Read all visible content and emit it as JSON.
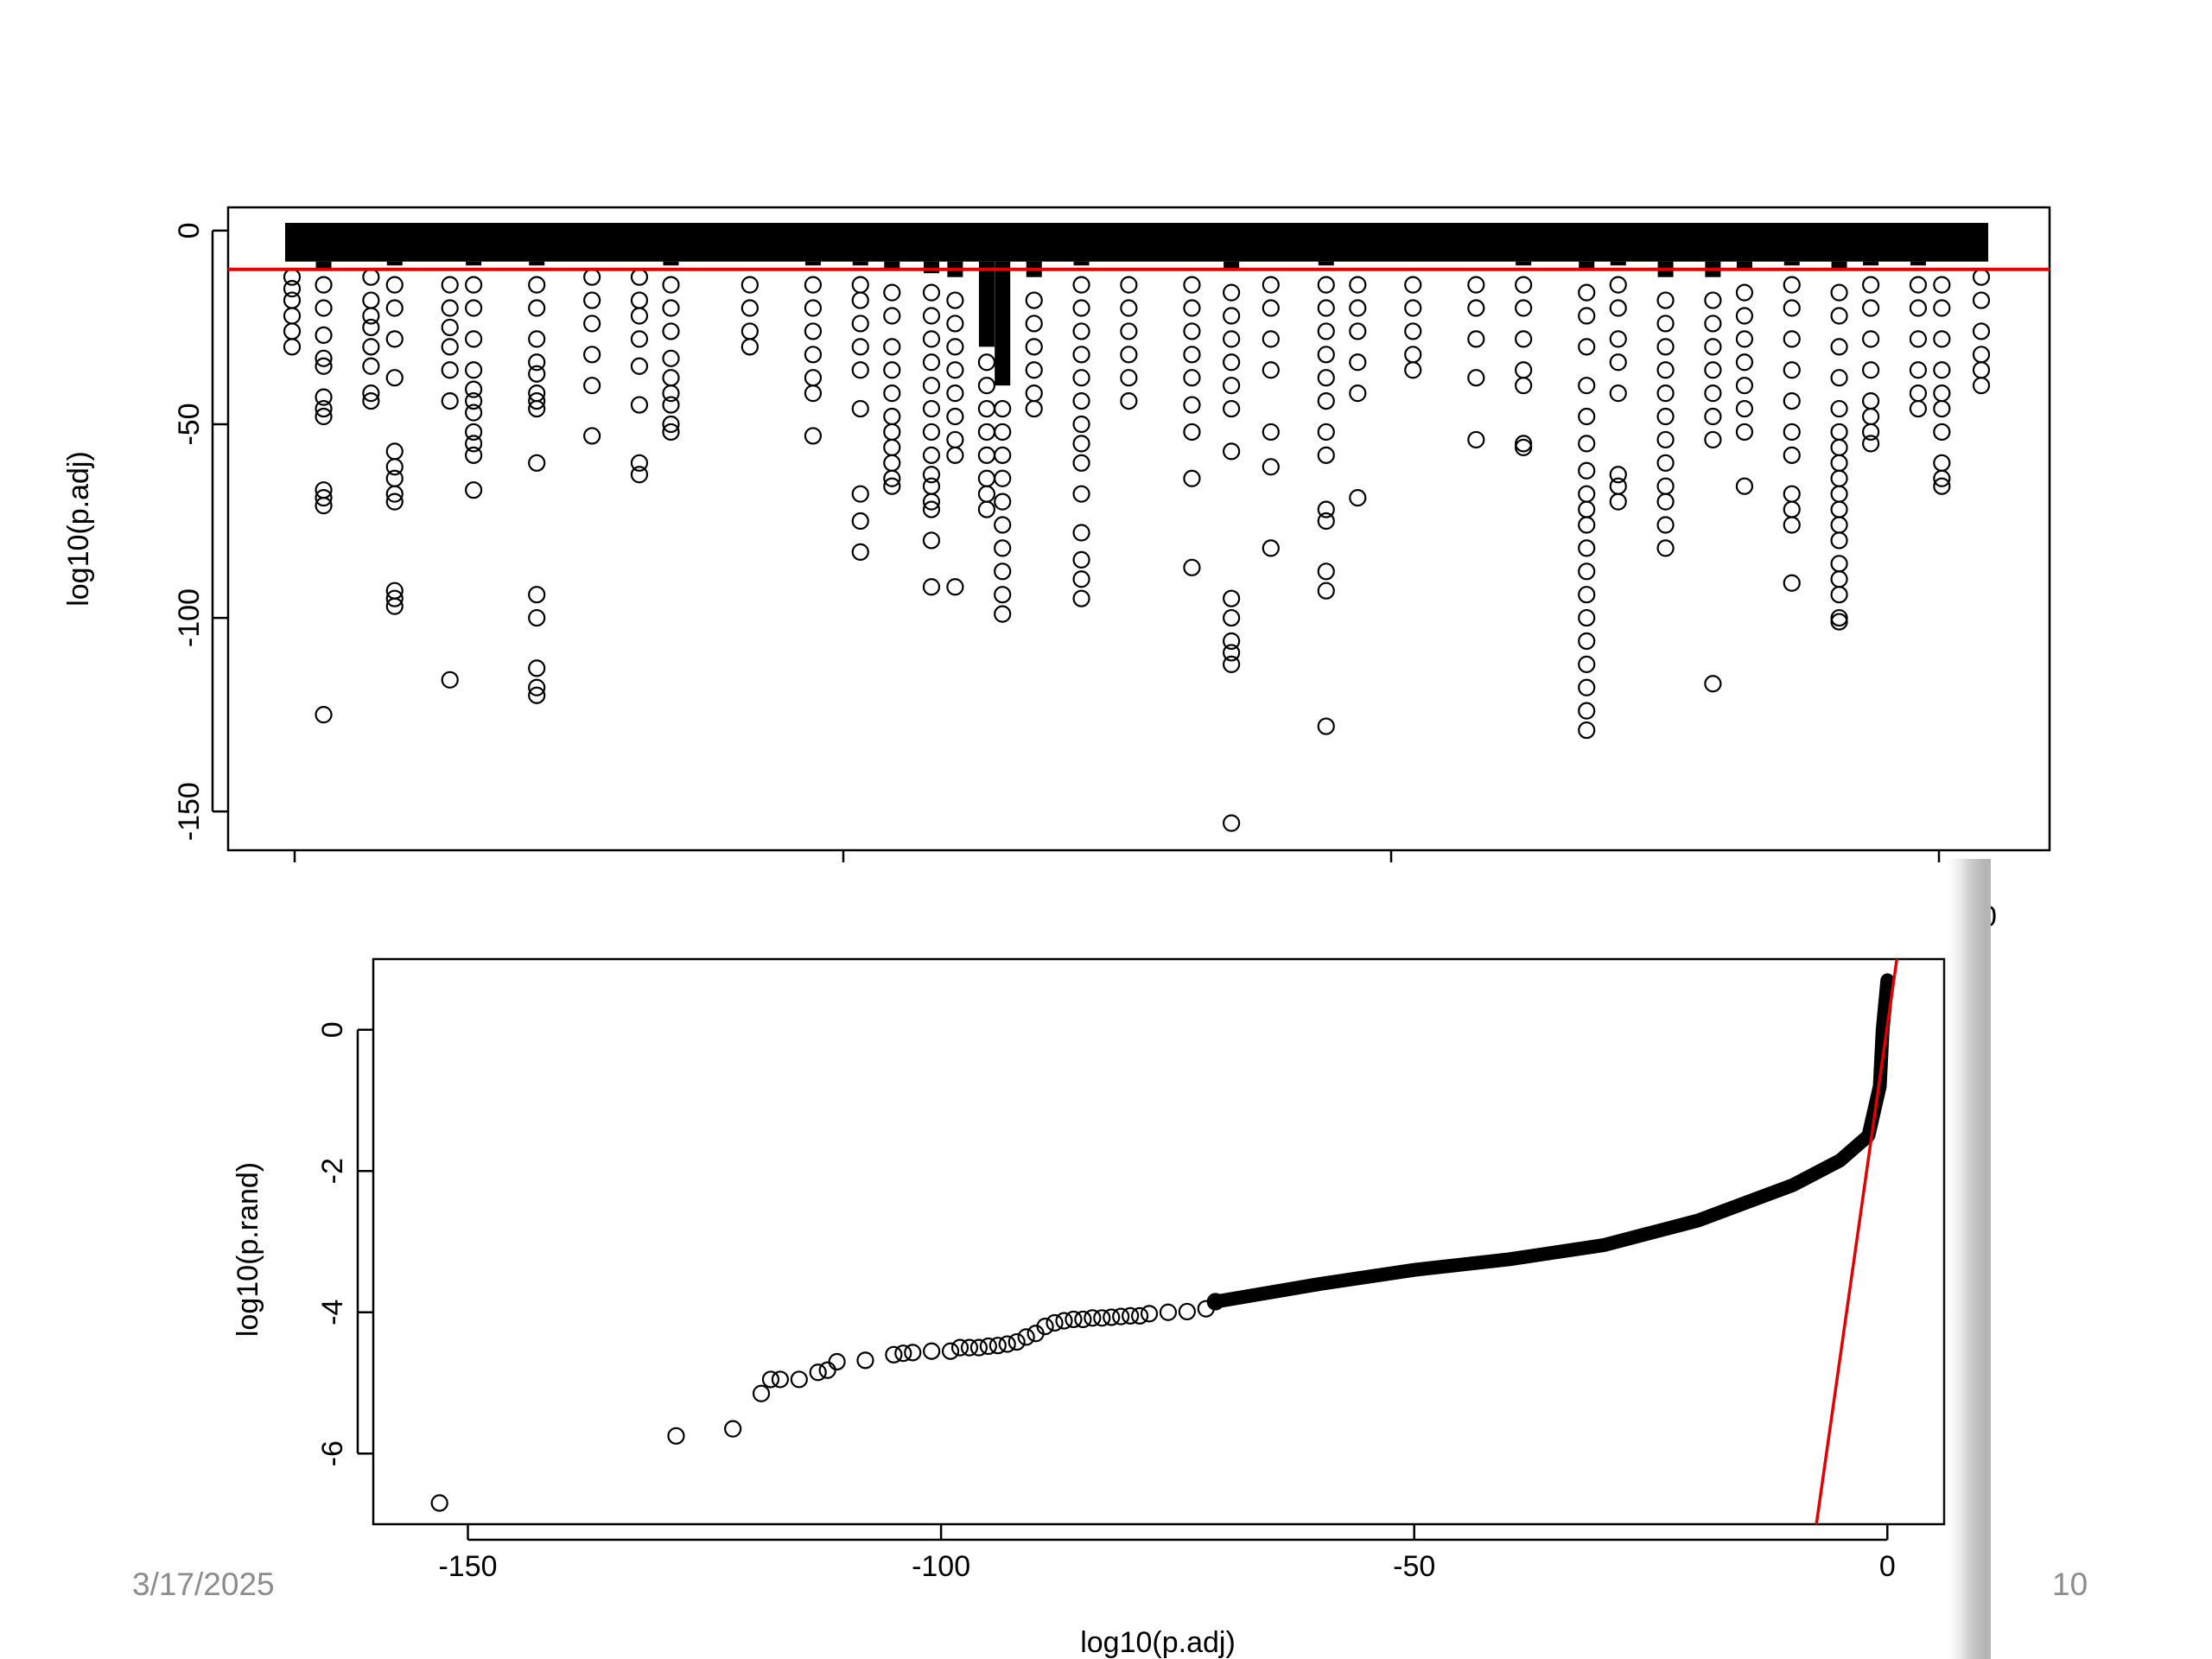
{
  "footer": {
    "date": "3/17/2025",
    "page_number": "10"
  },
  "chart_data": [
    {
      "type": "scatter",
      "ylabel": "log10(p.adj)",
      "xlabel": "",
      "yticks": [
        0,
        -50,
        -100,
        -150
      ],
      "ylim": [
        -160,
        6
      ],
      "marker": "open-circle",
      "hline": {
        "y": -10,
        "color": "#e00000"
      },
      "band_color": "#000000",
      "columns": [
        {
          "x": 0.0,
          "dense_min": -8,
          "tail": [
            -12,
            -15,
            -18,
            -22,
            -26,
            -30
          ]
        },
        {
          "x": 0.02,
          "dense_min": -10,
          "tail": [
            -14,
            -20,
            -27,
            -33,
            -35,
            -43,
            -46,
            -48,
            -67,
            -69,
            -71,
            -125
          ]
        },
        {
          "x": 0.05,
          "dense_min": -8,
          "tail": [
            -12,
            -18,
            -22,
            -25,
            -30,
            -35,
            -42,
            -44
          ]
        },
        {
          "x": 0.065,
          "dense_min": -9,
          "tail": [
            -14,
            -20,
            -28,
            -38,
            -57,
            -61,
            -64,
            -68,
            -93,
            -95,
            -97,
            -70
          ]
        },
        {
          "x": 0.1,
          "dense_min": -8,
          "tail": [
            -14,
            -20,
            -25,
            -30,
            -36,
            -44,
            -116
          ]
        },
        {
          "x": 0.115,
          "dense_min": -9,
          "tail": [
            -14,
            -20,
            -28,
            -36,
            -41,
            -44,
            -47,
            -52,
            -55,
            -58,
            -67
          ]
        },
        {
          "x": 0.155,
          "dense_min": -9,
          "tail": [
            -14,
            -20,
            -28,
            -34,
            -37,
            -42,
            -44,
            -46,
            -60,
            -94,
            -100,
            -113,
            -118,
            -120
          ]
        },
        {
          "x": 0.19,
          "dense_min": -8,
          "tail": [
            -12,
            -18,
            -24,
            -32,
            -40,
            -53
          ]
        },
        {
          "x": 0.22,
          "dense_min": -8,
          "tail": [
            -12,
            -18,
            -22,
            -28,
            -35,
            -45,
            -60,
            -63
          ]
        },
        {
          "x": 0.24,
          "dense_min": -9,
          "tail": [
            -14,
            -20,
            -26,
            -33,
            -38,
            -42,
            -45,
            -50,
            -52
          ]
        },
        {
          "x": 0.29,
          "dense_min": -8,
          "tail": [
            -14,
            -20,
            -26,
            -30
          ]
        },
        {
          "x": 0.33,
          "dense_min": -9,
          "tail": [
            -14,
            -20,
            -26,
            -32,
            -38,
            -42,
            -53
          ]
        },
        {
          "x": 0.36,
          "dense_min": -9,
          "tail": [
            -14,
            -18,
            -24,
            -30,
            -36,
            -46,
            -68,
            -75,
            -83
          ]
        },
        {
          "x": 0.38,
          "dense_min": -10,
          "tail": [
            -16,
            -22,
            -30,
            -36,
            -42,
            -48,
            -52,
            -56,
            -60,
            -64,
            -66
          ]
        },
        {
          "x": 0.405,
          "dense_min": -11,
          "tail": [
            -16,
            -22,
            -28,
            -34,
            -40,
            -46,
            -52,
            -58,
            -63,
            -66,
            -70,
            -72,
            -80,
            -92
          ]
        },
        {
          "x": 0.42,
          "dense_min": -12,
          "tail": [
            -18,
            -24,
            -30,
            -36,
            -42,
            -48,
            -54,
            -58,
            -92
          ]
        },
        {
          "x": 0.44,
          "dense_min": -30,
          "tail": [
            -34,
            -40,
            -46,
            -52,
            -58,
            -64,
            -68,
            -72
          ]
        },
        {
          "x": 0.45,
          "dense_min": -40,
          "tail": [
            -46,
            -52,
            -58,
            -64,
            -70,
            -76,
            -82,
            -88,
            -94,
            -99
          ]
        },
        {
          "x": 0.47,
          "dense_min": -12,
          "tail": [
            -18,
            -24,
            -30,
            -36,
            -42,
            -46
          ]
        },
        {
          "x": 0.5,
          "dense_min": -9,
          "tail": [
            -14,
            -20,
            -26,
            -32,
            -38,
            -44,
            -50,
            -55,
            -60,
            -68,
            -78,
            -85,
            -90,
            -95
          ]
        },
        {
          "x": 0.53,
          "dense_min": -8,
          "tail": [
            -14,
            -20,
            -26,
            -32,
            -38,
            -44
          ]
        },
        {
          "x": 0.57,
          "dense_min": -8,
          "tail": [
            -14,
            -20,
            -26,
            -32,
            -38,
            -45,
            -52,
            -64,
            -87
          ]
        },
        {
          "x": 0.595,
          "dense_min": -10,
          "tail": [
            -16,
            -22,
            -28,
            -34,
            -40,
            -46,
            -57,
            -95,
            -100,
            -106,
            -109,
            -112,
            -153
          ]
        },
        {
          "x": 0.62,
          "dense_min": -8,
          "tail": [
            -14,
            -20,
            -28,
            -36,
            -52,
            -61,
            -82
          ]
        },
        {
          "x": 0.655,
          "dense_min": -9,
          "tail": [
            -14,
            -20,
            -26,
            -32,
            -38,
            -44,
            -52,
            -58,
            -72,
            -75,
            -88,
            -93,
            -128
          ]
        },
        {
          "x": 0.675,
          "dense_min": -8,
          "tail": [
            -14,
            -20,
            -26,
            -34,
            -42,
            -69
          ]
        },
        {
          "x": 0.71,
          "dense_min": -8,
          "tail": [
            -14,
            -20,
            -26,
            -32,
            -36
          ]
        },
        {
          "x": 0.75,
          "dense_min": -8,
          "tail": [
            -14,
            -20,
            -28,
            -38,
            -54
          ]
        },
        {
          "x": 0.78,
          "dense_min": -9,
          "tail": [
            -14,
            -20,
            -28,
            -36,
            -40,
            -55,
            -56
          ]
        },
        {
          "x": 0.82,
          "dense_min": -10,
          "tail": [
            -16,
            -22,
            -30,
            -40,
            -48,
            -55,
            -62,
            -68,
            -72,
            -76,
            -82,
            -88,
            -94,
            -100,
            -106,
            -112,
            -118,
            -124,
            -129
          ]
        },
        {
          "x": 0.84,
          "dense_min": -9,
          "tail": [
            -14,
            -20,
            -28,
            -34,
            -42,
            -63,
            -66,
            -70
          ]
        },
        {
          "x": 0.87,
          "dense_min": -12,
          "tail": [
            -18,
            -24,
            -30,
            -36,
            -42,
            -48,
            -54,
            -60,
            -66,
            -70,
            -76,
            -82
          ]
        },
        {
          "x": 0.9,
          "dense_min": -12,
          "tail": [
            -18,
            -24,
            -30,
            -36,
            -42,
            -48,
            -54,
            -117
          ]
        },
        {
          "x": 0.92,
          "dense_min": -10,
          "tail": [
            -16,
            -22,
            -28,
            -34,
            -40,
            -46,
            -52,
            -66
          ]
        },
        {
          "x": 0.95,
          "dense_min": -9,
          "tail": [
            -14,
            -20,
            -28,
            -36,
            -44,
            -52,
            -58,
            -68,
            -72,
            -76,
            -91
          ]
        },
        {
          "x": 0.98,
          "dense_min": -10,
          "tail": [
            -16,
            -22,
            -30,
            -38,
            -46,
            -52,
            -56,
            -60,
            -64,
            -68,
            -72,
            -76,
            -80,
            -86,
            -90,
            -94,
            -100,
            -101
          ]
        },
        {
          "x": 1.0,
          "dense_min": -9,
          "tail": [
            -14,
            -20,
            -28,
            -36,
            -44,
            -48,
            -52,
            -55
          ]
        },
        {
          "x": 1.03,
          "dense_min": -9,
          "tail": [
            -14,
            -20,
            -28,
            -36,
            -42,
            -46
          ]
        },
        {
          "x": 1.045,
          "dense_min": -8,
          "tail": [
            -14,
            -20,
            -28,
            -36,
            -42,
            -46,
            -52,
            -60,
            -64,
            -66
          ]
        },
        {
          "x": 1.07,
          "dense_min": -7,
          "tail": [
            -12,
            -18,
            -26,
            -32,
            -36,
            -40
          ]
        }
      ]
    },
    {
      "type": "scatter",
      "xlabel": "log10(p.adj)",
      "ylabel": "log10(p.rand)",
      "xticks": [
        -150,
        -100,
        -50,
        0
      ],
      "yticks": [
        0,
        -2,
        -4,
        -6
      ],
      "xlim": [
        -160,
        6
      ],
      "ylim": [
        -7,
        1
      ],
      "marker": "open-circle",
      "isolated_points": [
        [
          -153,
          -6.7
        ],
        [
          -128,
          -5.75
        ],
        [
          -122,
          -5.65
        ],
        [
          -119,
          -5.15
        ],
        [
          -118,
          -4.95
        ],
        [
          -117,
          -4.95
        ],
        [
          -115,
          -4.95
        ],
        [
          -113,
          -4.85
        ],
        [
          -112,
          -4.82
        ],
        [
          -111,
          -4.7
        ],
        [
          -108,
          -4.68
        ],
        [
          -105,
          -4.6
        ],
        [
          -104,
          -4.58
        ],
        [
          -103,
          -4.57
        ],
        [
          -101,
          -4.55
        ],
        [
          -99,
          -4.55
        ],
        [
          -98,
          -4.5
        ],
        [
          -97,
          -4.5
        ],
        [
          -96,
          -4.5
        ],
        [
          -95,
          -4.48
        ],
        [
          -94,
          -4.47
        ],
        [
          -93,
          -4.45
        ],
        [
          -92,
          -4.42
        ],
        [
          -91,
          -4.35
        ],
        [
          -90,
          -4.3
        ],
        [
          -89,
          -4.2
        ],
        [
          -88,
          -4.15
        ],
        [
          -87,
          -4.12
        ],
        [
          -86,
          -4.1
        ],
        [
          -85,
          -4.1
        ],
        [
          -84,
          -4.08
        ],
        [
          -83,
          -4.08
        ],
        [
          -82,
          -4.07
        ],
        [
          -81,
          -4.06
        ],
        [
          -80,
          -4.05
        ],
        [
          -79,
          -4.05
        ],
        [
          -78,
          -4.02
        ],
        [
          -76,
          -4.0
        ],
        [
          -74,
          -3.99
        ],
        [
          -72,
          -3.95
        ],
        [
          -71,
          -3.85
        ]
      ],
      "dense_curve": [
        [
          -71,
          -3.85
        ],
        [
          -60,
          -3.6
        ],
        [
          -50,
          -3.4
        ],
        [
          -40,
          -3.25
        ],
        [
          -30,
          -3.05
        ],
        [
          -20,
          -2.7
        ],
        [
          -10,
          -2.2
        ],
        [
          -5,
          -1.85
        ],
        [
          -2,
          -1.5
        ],
        [
          -0.8,
          -0.8
        ],
        [
          -0.5,
          0.0
        ],
        [
          0.0,
          0.7
        ]
      ],
      "reference_line": {
        "from": [
          -7.5,
          -7
        ],
        "to": [
          1.0,
          1.0
        ],
        "color": "#e00000"
      }
    }
  ]
}
